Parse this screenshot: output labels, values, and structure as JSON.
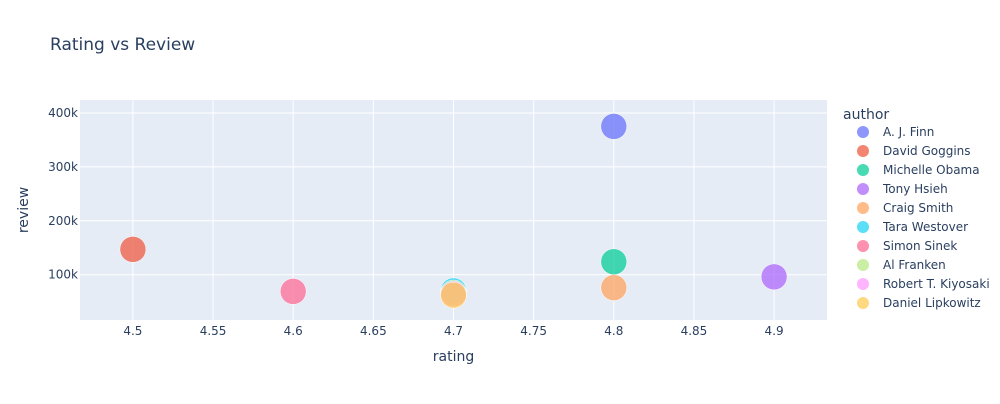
{
  "chart_data": {
    "type": "scatter",
    "title": "Rating vs Review",
    "xlabel": "rating",
    "ylabel": "review",
    "xlim": [
      4.467,
      4.933
    ],
    "ylim": [
      16000,
      424000
    ],
    "xticks": [
      4.5,
      4.55,
      4.6,
      4.65,
      4.7,
      4.75,
      4.8,
      4.85,
      4.9
    ],
    "xtick_labels": [
      "4.5",
      "4.55",
      "4.6",
      "4.65",
      "4.7",
      "4.75",
      "4.8",
      "4.85",
      "4.9"
    ],
    "yticks": [
      100000,
      200000,
      300000,
      400000
    ],
    "ytick_labels": [
      "100k",
      "200k",
      "300k",
      "400k"
    ],
    "grid": true,
    "legend_title": "author",
    "legend_position": "right",
    "series": [
      {
        "name": "A. J. Finn",
        "color": "#636efa",
        "points": [
          {
            "x": 4.8,
            "y": 375000
          }
        ]
      },
      {
        "name": "David Goggins",
        "color": "#EF553B",
        "points": [
          {
            "x": 4.5,
            "y": 147000
          }
        ]
      },
      {
        "name": "Michelle Obama",
        "color": "#00cc96",
        "points": [
          {
            "x": 4.8,
            "y": 124000
          }
        ]
      },
      {
        "name": "Tony Hsieh",
        "color": "#ab63fa",
        "points": [
          {
            "x": 4.9,
            "y": 96000
          }
        ]
      },
      {
        "name": "Craig Smith",
        "color": "#FFA15A",
        "points": [
          {
            "x": 4.8,
            "y": 76000
          }
        ]
      },
      {
        "name": "Tara Westover",
        "color": "#19d3f3",
        "points": [
          {
            "x": 4.7,
            "y": 70000
          }
        ]
      },
      {
        "name": "Simon Sinek",
        "color": "#FF6692",
        "points": [
          {
            "x": 4.6,
            "y": 69000
          }
        ]
      },
      {
        "name": "Al Franken",
        "color": "#B6E880",
        "points": [
          {
            "x": 4.7,
            "y": 66000
          }
        ]
      },
      {
        "name": "Robert T. Kiyosaki",
        "color": "#FF97FF",
        "points": [
          {
            "x": 4.7,
            "y": 64000
          }
        ]
      },
      {
        "name": "Daniel Lipkowitz",
        "color": "#FECB52",
        "points": [
          {
            "x": 4.7,
            "y": 62000
          }
        ]
      }
    ]
  }
}
